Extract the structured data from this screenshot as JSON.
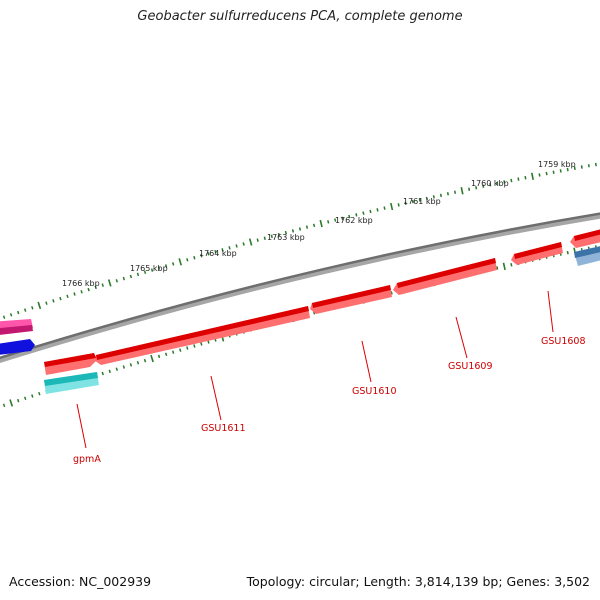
{
  "title": "Geobacter sulfurreducens PCA, complete genome",
  "footer": {
    "accession": "Accession: NC_002939",
    "summary": "Topology: circular; Length: 3,814,139 bp; Genes: 3,502"
  },
  "scale_labels": [
    "1759 kbp",
    "1760 kbp",
    "1761 kbp",
    "1762 kbp",
    "1763 kbp",
    "1764 kbp",
    "1765 kbp",
    "1766 kbp"
  ],
  "gene_labels": [
    "GSU1608",
    "GSU1609",
    "GSU1610",
    "GSU1611",
    "gpmA"
  ],
  "colors": {
    "backbone": "#8a8a8a",
    "gene_red": "#ee1111",
    "gene_cyan": "#22c6c6",
    "gene_magenta": "#ee2f94",
    "gene_blue": "#1111dd",
    "gene_steelblue": "#4a82b8",
    "tick_green": "#2a7a2a",
    "label_red": "#cc0000"
  }
}
